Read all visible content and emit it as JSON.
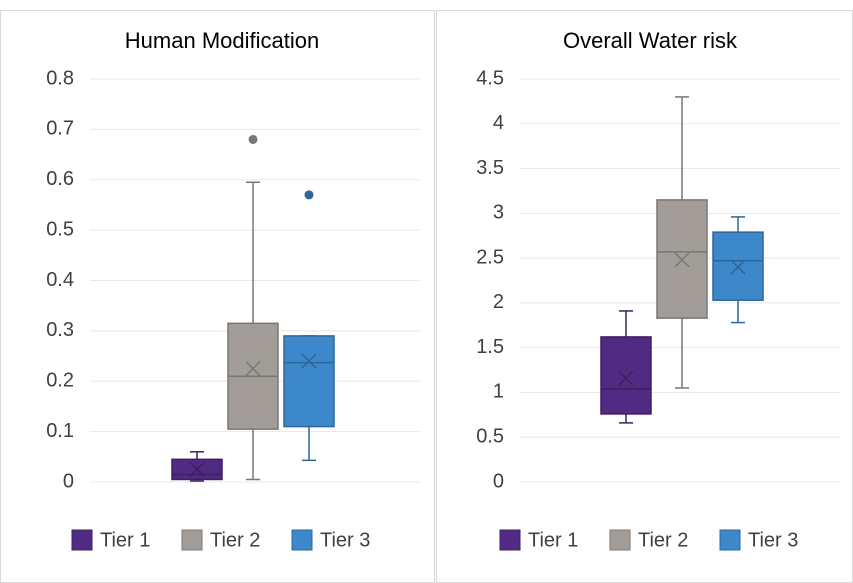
{
  "chart_data": [
    {
      "type": "box",
      "title": "Human Modification",
      "ylim": [
        0,
        0.8
      ],
      "yticks": [
        0,
        0.1,
        0.2,
        0.3,
        0.4,
        0.5,
        0.6,
        0.7,
        0.8
      ],
      "grid": true,
      "legend": "bottom",
      "series": [
        {
          "name": "Tier 1",
          "color": "#512b83",
          "min": 0.002,
          "q1": 0.005,
          "median": 0.015,
          "q3": 0.045,
          "max": 0.06,
          "mean": 0.025,
          "outliers": []
        },
        {
          "name": "Tier 2",
          "color": "#a29d98",
          "min": 0.005,
          "q1": 0.105,
          "median": 0.21,
          "q3": 0.315,
          "max": 0.595,
          "mean": 0.225,
          "outliers": [
            0.68
          ]
        },
        {
          "name": "Tier 3",
          "color": "#3d88cb",
          "min": 0.043,
          "q1": 0.11,
          "median": 0.237,
          "q3": 0.29,
          "max": 0.29,
          "mean": 0.24,
          "outliers": [
            0.57
          ]
        }
      ]
    },
    {
      "type": "box",
      "title": "Overall Water risk",
      "ylim": [
        0,
        4.5
      ],
      "yticks": [
        0,
        0.5,
        1,
        1.5,
        2,
        2.5,
        3,
        3.5,
        4,
        4.5
      ],
      "grid": true,
      "legend": "bottom",
      "series": [
        {
          "name": "Tier 1",
          "color": "#512b83",
          "min": 0.66,
          "q1": 0.76,
          "median": 1.04,
          "q3": 1.62,
          "max": 1.91,
          "mean": 1.16,
          "outliers": []
        },
        {
          "name": "Tier 2",
          "color": "#a29d98",
          "min": 1.05,
          "q1": 1.83,
          "median": 2.57,
          "q3": 3.15,
          "max": 4.3,
          "mean": 2.48,
          "outliers": []
        },
        {
          "name": "Tier 3",
          "color": "#3d88cb",
          "min": 1.78,
          "q1": 2.03,
          "median": 2.47,
          "q3": 2.79,
          "max": 2.96,
          "mean": 2.4,
          "outliers": []
        }
      ]
    }
  ]
}
